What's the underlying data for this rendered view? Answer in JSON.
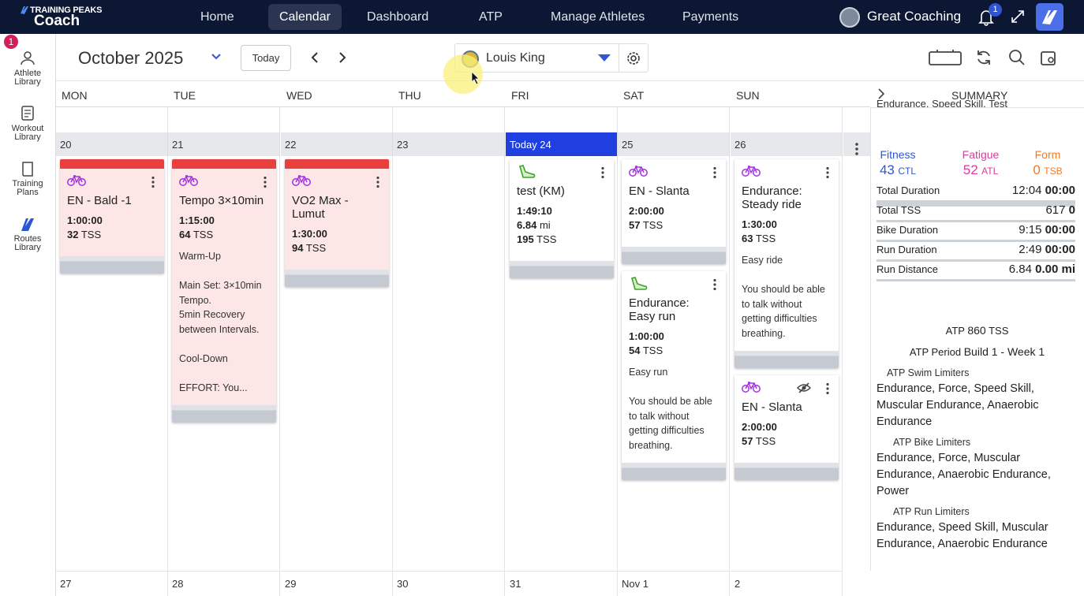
{
  "nav": {
    "brand_small": "TRAINING PEAKS",
    "brand": "Coach",
    "items": [
      "Home",
      "Calendar",
      "Dashboard",
      "ATP",
      "Manage Athletes",
      "Payments"
    ],
    "active": 1,
    "account": "Great Coaching",
    "notifications": 1
  },
  "sidebar": {
    "badge": 1,
    "items": [
      "Athlete Library",
      "Workout Library",
      "Training Plans",
      "Routes Library"
    ]
  },
  "toolbar": {
    "month": "October 2025",
    "today_button": "Today",
    "athlete": "Louis King"
  },
  "calendar": {
    "weekdays": [
      "MON",
      "TUE",
      "WED",
      "THU",
      "FRI",
      "SAT",
      "SUN"
    ],
    "summary_label": "SUMMARY",
    "week_days": [
      "20",
      "21",
      "22",
      "23",
      "Today 24",
      "25",
      "26"
    ],
    "today_index": 4,
    "next_week_days": [
      "27",
      "28",
      "29",
      "30",
      "31",
      "Nov 1",
      "2"
    ],
    "units": {
      "tss": "TSS",
      "distance": "mi"
    },
    "workouts": [
      [
        {
          "sport": "bike",
          "title": "EN - Bald -1",
          "duration": "1:00:00",
          "tss": 32,
          "color": "#fce6e6",
          "accent": "#e8403e"
        }
      ],
      [
        {
          "sport": "bike",
          "title": "Tempo 3×10min",
          "duration": "1:15:00",
          "tss": 64,
          "color": "#fce6e6",
          "accent": "#e8403e",
          "description": [
            "Warm-Up",
            "Main Set: 3×10min Tempo.\n5min Recovery between Intervals.",
            "Cool-Down",
            "EFFORT: You..."
          ]
        }
      ],
      [
        {
          "sport": "bike",
          "title": "VO2 Max - Lumut",
          "duration": "1:30:00",
          "tss": 94,
          "color": "#fce6e6",
          "accent": "#e8403e"
        }
      ],
      [],
      [
        {
          "sport": "run",
          "title": "test (KM)",
          "duration": "1:49:10",
          "distance": 6.84,
          "tss": 195,
          "color": "#ffffff"
        }
      ],
      [
        {
          "sport": "bike",
          "title": "EN - Slanta",
          "duration": "2:00:00",
          "tss": 57,
          "color": "#ffffff"
        },
        {
          "sport": "run",
          "title": "Endurance: Easy run",
          "duration": "1:00:00",
          "tss": 54,
          "color": "#ffffff",
          "description": [
            "Easy run",
            "You should be able to talk without getting difficulties breathing."
          ]
        }
      ],
      [
        {
          "sport": "bike",
          "title": "Endurance: Steady ride",
          "duration": "1:30:00",
          "tss": 63,
          "color": "#ffffff",
          "description": [
            "Easy ride",
            "You should be able to talk without getting difficulties breathing."
          ]
        },
        {
          "sport": "bike",
          "title": "EN - Slanta",
          "duration": "2:00:00",
          "tss": 57,
          "color": "#ffffff",
          "hidden": true
        }
      ]
    ]
  },
  "summary": {
    "top_text": "Endurance, Speed Skill, Test",
    "metrics": [
      {
        "label": "Fitness",
        "value": 43,
        "unit": "CTL",
        "color": "#2f55d4"
      },
      {
        "label": "Fatigue",
        "value": 52,
        "unit": "ATL",
        "color": "#d63ca0"
      },
      {
        "label": "Form",
        "value": 0,
        "unit": "TSB",
        "color": "#f07a2a"
      }
    ],
    "rows": [
      {
        "label": "Total Duration",
        "value": "12:04",
        "planned": "00:00"
      },
      {
        "label": "Total TSS",
        "value": 617,
        "planned": 0
      },
      {
        "label": "Bike Duration",
        "value": "9:15",
        "planned": "00:00"
      },
      {
        "label": "Run Duration",
        "value": "2:49",
        "planned": "00:00"
      },
      {
        "label": "Run Distance",
        "value": 6.84,
        "planned": "0.00",
        "unit": "mi"
      }
    ],
    "atp": {
      "label": "ATP",
      "value": 860,
      "unit": "TSS"
    },
    "period_label": "ATP Period",
    "period": "Build 1 - Week 1",
    "limiters": [
      {
        "label": "ATP Swim Limiters",
        "text": "Endurance, Force, Speed Skill, Muscular Endurance, Anaerobic Endurance"
      },
      {
        "label": "ATP Bike Limiters",
        "text": "Endurance, Force, Muscular Endurance, Anaerobic Endurance, Power"
      },
      {
        "label": "ATP Run Limiters",
        "text": "Endurance, Speed Skill, Muscular Endurance, Anaerobic Endurance"
      }
    ]
  }
}
